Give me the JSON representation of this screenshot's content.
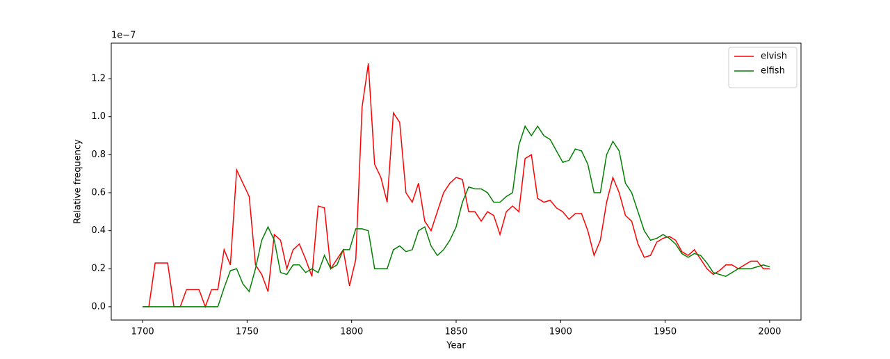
{
  "chart_data": {
    "type": "line",
    "x_label": "Year",
    "y_label": "Relative frequency",
    "y_offset_label": "1e−7",
    "x": [
      1700,
      1703,
      1706,
      1709,
      1712,
      1715,
      1718,
      1721,
      1724,
      1727,
      1730,
      1733,
      1736,
      1739,
      1742,
      1745,
      1748,
      1751,
      1754,
      1757,
      1760,
      1763,
      1766,
      1769,
      1772,
      1775,
      1778,
      1781,
      1784,
      1787,
      1790,
      1793,
      1796,
      1799,
      1802,
      1805,
      1808,
      1811,
      1814,
      1817,
      1820,
      1823,
      1826,
      1829,
      1832,
      1835,
      1838,
      1841,
      1844,
      1847,
      1850,
      1853,
      1856,
      1859,
      1862,
      1865,
      1868,
      1871,
      1874,
      1877,
      1880,
      1883,
      1886,
      1889,
      1892,
      1895,
      1898,
      1901,
      1904,
      1907,
      1910,
      1913,
      1916,
      1919,
      1922,
      1925,
      1928,
      1931,
      1934,
      1937,
      1940,
      1943,
      1946,
      1949,
      1952,
      1955,
      1958,
      1961,
      1964,
      1967,
      1970,
      1973,
      1976,
      1979,
      1982,
      1985,
      1988,
      1991,
      1994,
      1997,
      2000
    ],
    "series": [
      {
        "name": "elvish",
        "color": "#ff0000",
        "values": [
          0,
          0,
          0.23,
          0.23,
          0.23,
          0,
          0,
          0.09,
          0.09,
          0.09,
          0,
          0.09,
          0.09,
          0.3,
          0.22,
          0.72,
          0.65,
          0.58,
          0.22,
          0.17,
          0.08,
          0.38,
          0.35,
          0.2,
          0.3,
          0.33,
          0.25,
          0.16,
          0.53,
          0.52,
          0.2,
          0.25,
          0.3,
          0.11,
          0.25,
          1.05,
          1.28,
          0.75,
          0.68,
          0.55,
          1.02,
          0.97,
          0.6,
          0.55,
          0.65,
          0.45,
          0.4,
          0.5,
          0.6,
          0.65,
          0.68,
          0.67,
          0.5,
          0.5,
          0.45,
          0.5,
          0.48,
          0.38,
          0.5,
          0.53,
          0.5,
          0.78,
          0.8,
          0.57,
          0.55,
          0.56,
          0.52,
          0.5,
          0.46,
          0.49,
          0.49,
          0.4,
          0.27,
          0.35,
          0.55,
          0.68,
          0.6,
          0.48,
          0.45,
          0.33,
          0.26,
          0.27,
          0.34,
          0.36,
          0.37,
          0.35,
          0.29,
          0.27,
          0.3,
          0.25,
          0.2,
          0.17,
          0.19,
          0.22,
          0.22,
          0.2,
          0.22,
          0.24,
          0.24,
          0.2,
          0.2
        ]
      },
      {
        "name": "elfish",
        "color": "#008000",
        "values": [
          0,
          0,
          0,
          0,
          0,
          0,
          0,
          0,
          0,
          0,
          0,
          0,
          0,
          0.1,
          0.19,
          0.2,
          0.12,
          0.08,
          0.2,
          0.35,
          0.42,
          0.35,
          0.18,
          0.17,
          0.22,
          0.22,
          0.18,
          0.2,
          0.18,
          0.27,
          0.2,
          0.22,
          0.3,
          0.3,
          0.41,
          0.41,
          0.4,
          0.2,
          0.2,
          0.2,
          0.3,
          0.32,
          0.29,
          0.3,
          0.4,
          0.42,
          0.32,
          0.27,
          0.3,
          0.35,
          0.42,
          0.55,
          0.63,
          0.62,
          0.62,
          0.6,
          0.55,
          0.55,
          0.58,
          0.6,
          0.85,
          0.95,
          0.9,
          0.95,
          0.9,
          0.88,
          0.82,
          0.76,
          0.77,
          0.83,
          0.82,
          0.75,
          0.6,
          0.6,
          0.8,
          0.87,
          0.82,
          0.65,
          0.6,
          0.5,
          0.4,
          0.35,
          0.36,
          0.38,
          0.36,
          0.33,
          0.28,
          0.26,
          0.28,
          0.27,
          0.23,
          0.18,
          0.17,
          0.16,
          0.18,
          0.2,
          0.2,
          0.2,
          0.21,
          0.22,
          0.21
        ]
      }
    ],
    "xlim": [
      1685,
      2015
    ],
    "xticks": [
      1700,
      1750,
      1800,
      1850,
      1900,
      1950,
      2000
    ],
    "ylim": [
      -0.07,
      1.387
    ],
    "yticks": [
      {
        "value": 0,
        "label": "0.0"
      },
      0.2,
      0.4,
      0.6,
      0.8,
      {
        "value": 1,
        "label": "1.0"
      },
      1.2
    ],
    "grid": false,
    "legend": "upper-right"
  }
}
